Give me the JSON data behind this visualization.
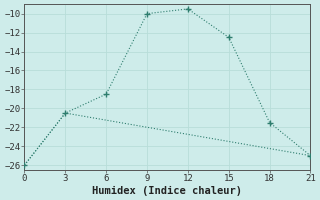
{
  "xlabel": "Humidex (Indice chaleur)",
  "line1_x": [
    0,
    3,
    6,
    9,
    12,
    15,
    18,
    21
  ],
  "line1_y": [
    -26,
    -20.5,
    -18.5,
    -10,
    -9.5,
    -12.5,
    -21.5,
    -25
  ],
  "line2_x": [
    0,
    3,
    21
  ],
  "line2_y": [
    -26,
    -20.5,
    -25
  ],
  "line_color": "#2e7d6e",
  "bg_color": "#ceecea",
  "grid_color": "#b8ddd9",
  "xlim": [
    0,
    21
  ],
  "ylim": [
    -26.5,
    -9
  ],
  "xticks": [
    0,
    3,
    6,
    9,
    12,
    15,
    18,
    21
  ],
  "yticks": [
    -26,
    -24,
    -22,
    -20,
    -18,
    -16,
    -14,
    -12,
    -10
  ],
  "tick_fontsize": 6.5,
  "label_fontsize": 7.5
}
